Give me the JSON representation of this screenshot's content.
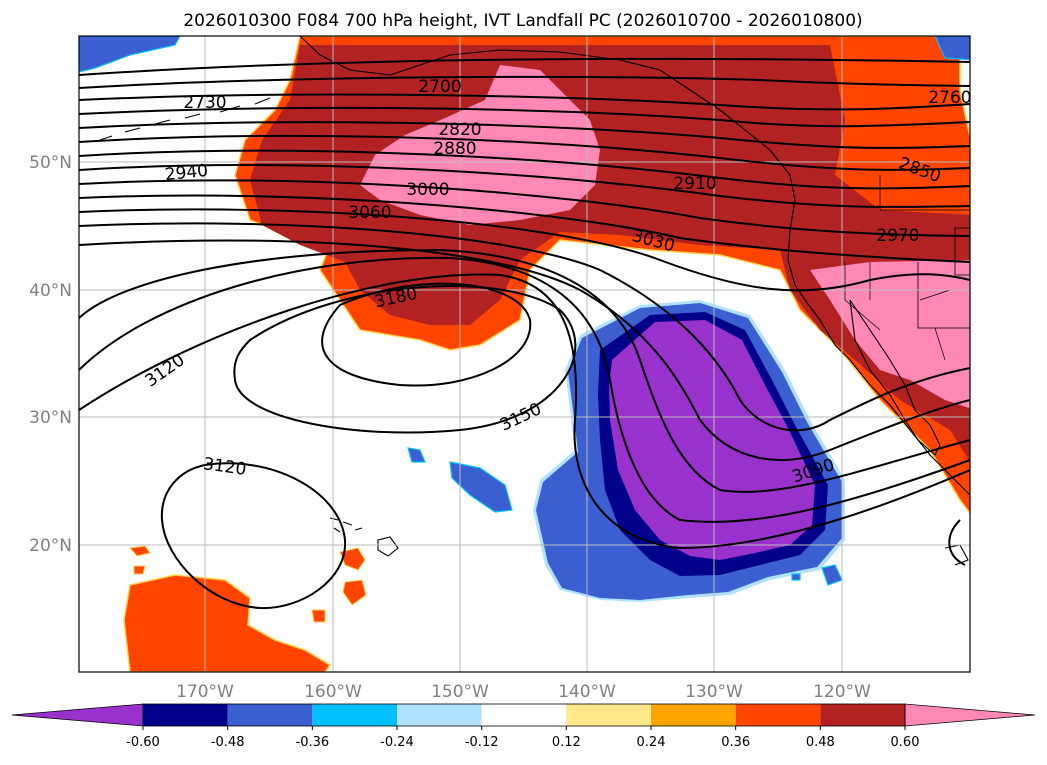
{
  "map": {
    "title": "2026010300 F084 700 hPa height, IVT Landfall PC (2026010700 - 2026010800)",
    "lat_labels": [
      "50°N",
      "40°N",
      "30°N",
      "20°N"
    ],
    "lon_labels": [
      "170°W",
      "160°W",
      "150°W",
      "140°W",
      "130°W",
      "120°W"
    ],
    "contour_labels": [
      "2700",
      "2730",
      "2760",
      "2820",
      "2850",
      "2880",
      "2910",
      "2940",
      "2970",
      "3000",
      "3030",
      "3060",
      "3090",
      "3120",
      "3120",
      "3150",
      "3180"
    ]
  },
  "colorbar": {
    "colors": [
      "#9932cc",
      "#00008b",
      "#3b5fd0",
      "#00bfff",
      "#b0e2ff",
      "#ffffff",
      "#ffe98a",
      "#ffa500",
      "#ff4500",
      "#b22222",
      "#ff88b4"
    ],
    "labels": [
      "-0.60",
      "-0.48",
      "-0.36",
      "-0.24",
      "-0.12",
      "0.12",
      "0.24",
      "0.36",
      "0.48",
      "0.60"
    ]
  },
  "colors": {
    "land_fill": "#ffffff",
    "grid": "#bbbbbb",
    "contour": "#000000"
  }
}
